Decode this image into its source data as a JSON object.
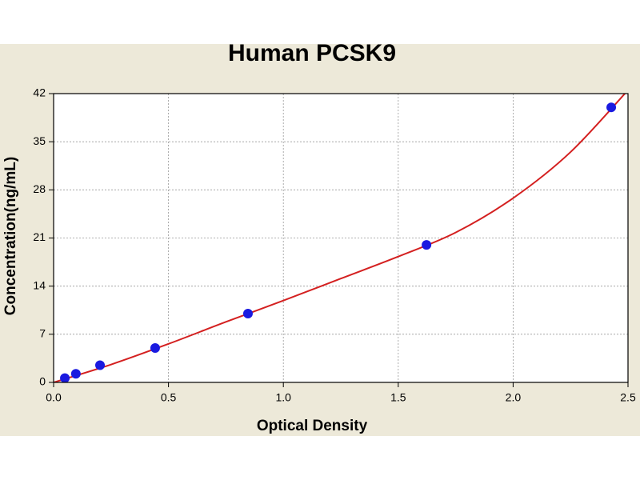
{
  "chart_data": {
    "type": "scatter",
    "title": "Human PCSK9",
    "x_label": "Optical Density",
    "y_label": "Concentration(ng/mL)",
    "xlim": [
      0,
      2.5
    ],
    "ylim": [
      0,
      42
    ],
    "xticks": [
      {
        "value": 0,
        "label": "0.0"
      },
      0.5,
      {
        "value": 1,
        "label": "1.0"
      },
      1.5,
      {
        "value": 2,
        "label": "2.0"
      },
      2.5
    ],
    "yticks": [
      0,
      7,
      14,
      21,
      28,
      35,
      42
    ],
    "grid": true,
    "series": [
      {
        "style": "curve",
        "color": "#d42020",
        "x": [
          0,
          0.25,
          0.5,
          0.75,
          1.0,
          1.25,
          1.5,
          1.75,
          2.0,
          2.25,
          2.5
        ],
        "values": [
          0,
          2.6,
          5.6,
          8.8,
          11.9,
          15.1,
          18.3,
          21.8,
          26.8,
          33.5,
          42.5
        ]
      },
      {
        "style": "markers",
        "color": "#1a1ae0",
        "x": [
          0.049,
          0.097,
          0.202,
          0.442,
          0.846,
          1.623,
          2.427
        ],
        "values": [
          0.625,
          1.25,
          2.5,
          5,
          10,
          20,
          40
        ]
      }
    ]
  }
}
